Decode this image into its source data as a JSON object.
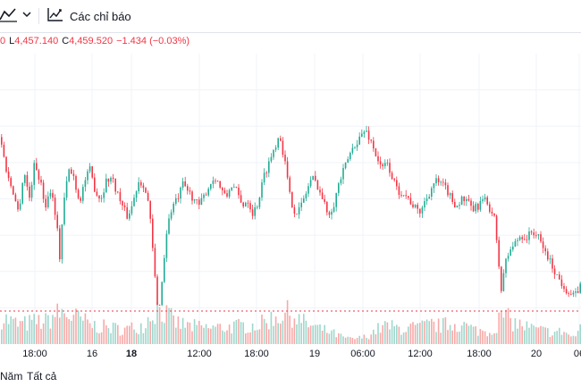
{
  "toolbar": {
    "chart_type_icon": "area-chart-icon",
    "dropdown_icon": "chevron-down-icon",
    "indicators_icon": "indicators-icon",
    "indicators_label": "Các chỉ báo"
  },
  "legend": {
    "open_tail": "0",
    "low_key": "L",
    "low_value": "4,457.140",
    "close_key": "C",
    "close_value": "4,459.520",
    "change": "−1.434 (−0.03%)"
  },
  "timeframes": {
    "year_tail": "Năm",
    "all": "Tất cả"
  },
  "colors": {
    "up": "#22ab94",
    "down": "#f23645",
    "up_volume": "#9fd7cd",
    "down_volume": "#f7a9a7",
    "grid": "#f0f3fa",
    "reference_line": "#f23645"
  },
  "chart_data": {
    "type": "candlestick",
    "x_tick_labels": [
      {
        "label": "18:00",
        "bold": false
      },
      {
        "label": "16",
        "bold": false
      },
      {
        "label": "18",
        "bold": true
      },
      {
        "label": "12:00",
        "bold": false
      },
      {
        "label": "18:00",
        "bold": false
      },
      {
        "label": "19",
        "bold": false
      },
      {
        "label": "06:00",
        "bold": false
      },
      {
        "label": "12:00",
        "bold": false
      },
      {
        "label": "18:00",
        "bold": false
      },
      {
        "label": "20",
        "bold": false
      },
      {
        "label": "06",
        "bold": false
      }
    ],
    "price_path": [
      [
        0,
        4477
      ],
      [
        3,
        4472
      ],
      [
        8,
        4466
      ],
      [
        14,
        4462
      ],
      [
        20,
        4456
      ],
      [
        26,
        4468
      ],
      [
        32,
        4460
      ],
      [
        38,
        4470
      ],
      [
        44,
        4465
      ],
      [
        50,
        4458
      ],
      [
        56,
        4463
      ],
      [
        62,
        4455
      ],
      [
        66,
        4444
      ],
      [
        70,
        4458
      ],
      [
        76,
        4468
      ],
      [
        82,
        4466
      ],
      [
        88,
        4459
      ],
      [
        94,
        4465
      ],
      [
        100,
        4468
      ],
      [
        106,
        4462
      ],
      [
        112,
        4460
      ],
      [
        118,
        4465
      ],
      [
        124,
        4466
      ],
      [
        130,
        4462
      ],
      [
        136,
        4458
      ],
      [
        142,
        4455
      ],
      [
        148,
        4459
      ],
      [
        154,
        4465
      ],
      [
        160,
        4464
      ],
      [
        166,
        4458
      ],
      [
        172,
        4440
      ],
      [
        176,
        4428
      ],
      [
        180,
        4436
      ],
      [
        186,
        4452
      ],
      [
        192,
        4458
      ],
      [
        198,
        4460
      ],
      [
        204,
        4464
      ],
      [
        210,
        4462
      ],
      [
        216,
        4460
      ],
      [
        222,
        4458
      ],
      [
        228,
        4461
      ],
      [
        234,
        4464
      ],
      [
        240,
        4466
      ],
      [
        246,
        4463
      ],
      [
        252,
        4460
      ],
      [
        258,
        4464
      ],
      [
        264,
        4462
      ],
      [
        270,
        4458
      ],
      [
        276,
        4460
      ],
      [
        282,
        4456
      ],
      [
        288,
        4459
      ],
      [
        294,
        4466
      ],
      [
        300,
        4470
      ],
      [
        306,
        4474
      ],
      [
        312,
        4478
      ],
      [
        318,
        4470
      ],
      [
        324,
        4460
      ],
      [
        330,
        4456
      ],
      [
        336,
        4458
      ],
      [
        342,
        4462
      ],
      [
        348,
        4466
      ],
      [
        354,
        4464
      ],
      [
        360,
        4460
      ],
      [
        366,
        4456
      ],
      [
        372,
        4458
      ],
      [
        378,
        4464
      ],
      [
        384,
        4468
      ],
      [
        390,
        4472
      ],
      [
        396,
        4475
      ],
      [
        402,
        4477
      ],
      [
        408,
        4479
      ],
      [
        414,
        4476
      ],
      [
        420,
        4472
      ],
      [
        426,
        4468
      ],
      [
        432,
        4470
      ],
      [
        438,
        4466
      ],
      [
        444,
        4462
      ],
      [
        450,
        4462
      ],
      [
        456,
        4460
      ],
      [
        462,
        4458
      ],
      [
        468,
        4456
      ],
      [
        474,
        4459
      ],
      [
        480,
        4462
      ],
      [
        486,
        4465
      ],
      [
        492,
        4464
      ],
      [
        498,
        4463
      ],
      [
        504,
        4460
      ],
      [
        510,
        4458
      ],
      [
        516,
        4460
      ],
      [
        522,
        4459
      ],
      [
        528,
        4457
      ],
      [
        534,
        4458
      ],
      [
        540,
        4460
      ],
      [
        546,
        4458
      ],
      [
        552,
        4455
      ],
      [
        556,
        4445
      ],
      [
        560,
        4435
      ],
      [
        564,
        4442
      ],
      [
        570,
        4446
      ],
      [
        576,
        4448
      ],
      [
        582,
        4450
      ],
      [
        588,
        4449
      ],
      [
        594,
        4451
      ],
      [
        600,
        4450
      ],
      [
        606,
        4447
      ],
      [
        612,
        4444
      ],
      [
        618,
        4441
      ],
      [
        624,
        4438
      ],
      [
        630,
        4436
      ],
      [
        636,
        4434
      ],
      [
        642,
        4433
      ],
      [
        648,
        4436
      ]
    ],
    "volume_profile": [
      [
        0,
        0.42
      ],
      [
        10,
        0.36
      ],
      [
        20,
        0.3
      ],
      [
        30,
        0.32
      ],
      [
        40,
        0.35
      ],
      [
        50,
        0.34
      ],
      [
        60,
        0.45
      ],
      [
        70,
        0.48
      ],
      [
        80,
        0.42
      ],
      [
        90,
        0.38
      ],
      [
        100,
        0.3
      ],
      [
        110,
        0.27
      ],
      [
        120,
        0.26
      ],
      [
        130,
        0.24
      ],
      [
        140,
        0.23
      ],
      [
        150,
        0.26
      ],
      [
        160,
        0.3
      ],
      [
        170,
        0.5
      ],
      [
        178,
        0.58
      ],
      [
        186,
        0.44
      ],
      [
        196,
        0.33
      ],
      [
        210,
        0.28
      ],
      [
        230,
        0.25
      ],
      [
        250,
        0.26
      ],
      [
        270,
        0.28
      ],
      [
        290,
        0.3
      ],
      [
        300,
        0.38
      ],
      [
        312,
        0.45
      ],
      [
        324,
        0.48
      ],
      [
        336,
        0.35
      ],
      [
        348,
        0.28
      ],
      [
        360,
        0.22
      ],
      [
        370,
        0.18
      ],
      [
        380,
        0.12
      ],
      [
        390,
        0.08
      ],
      [
        400,
        0.09
      ],
      [
        410,
        0.12
      ],
      [
        420,
        0.22
      ],
      [
        430,
        0.28
      ],
      [
        440,
        0.26
      ],
      [
        450,
        0.24
      ],
      [
        460,
        0.25
      ],
      [
        470,
        0.26
      ],
      [
        480,
        0.3
      ],
      [
        490,
        0.28
      ],
      [
        500,
        0.3
      ],
      [
        510,
        0.32
      ],
      [
        520,
        0.28
      ],
      [
        530,
        0.22
      ],
      [
        540,
        0.2
      ],
      [
        550,
        0.2
      ],
      [
        556,
        0.34
      ],
      [
        562,
        0.46
      ],
      [
        570,
        0.36
      ],
      [
        580,
        0.3
      ],
      [
        590,
        0.26
      ],
      [
        600,
        0.22
      ],
      [
        610,
        0.2
      ],
      [
        620,
        0.18
      ],
      [
        630,
        0.2
      ],
      [
        640,
        0.1
      ],
      [
        648,
        0.22
      ]
    ]
  }
}
